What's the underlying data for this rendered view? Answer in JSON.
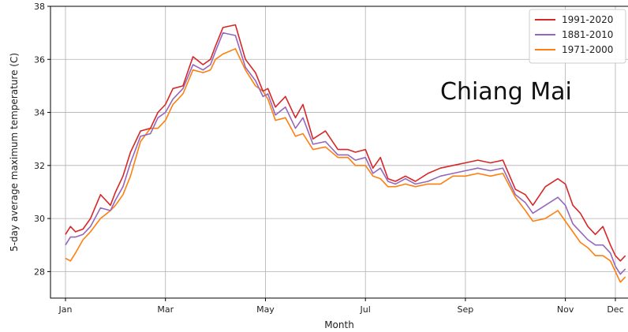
{
  "chart_data": {
    "type": "line",
    "title": "",
    "xlabel": "Month",
    "ylabel": "5-day average maximum temperature (C)",
    "annotation": "Chiang Mai",
    "xlim": [
      -0.3,
      11.3
    ],
    "ylim": [
      27,
      38
    ],
    "x_ticks": [
      0,
      2,
      4,
      6,
      8,
      10,
      11
    ],
    "x_tick_labels": [
      "Jan",
      "Mar",
      "May",
      "Jul",
      "Sep",
      "Nov",
      "Dec"
    ],
    "y_ticks": [
      28,
      30,
      32,
      34,
      36,
      38
    ],
    "y_tick_labels": [
      "28",
      "30",
      "32",
      "34",
      "36",
      "38"
    ],
    "grid": true,
    "legend_position": "top-right",
    "x_unit": "month index (0 = Jan)",
    "series": [
      {
        "name": "1991-2020",
        "color": "#d62728",
        "x": [
          0.0,
          0.1,
          0.2,
          0.35,
          0.5,
          0.7,
          0.9,
          1.0,
          1.15,
          1.3,
          1.5,
          1.7,
          1.85,
          2.0,
          2.15,
          2.35,
          2.55,
          2.75,
          2.9,
          3.0,
          3.15,
          3.4,
          3.6,
          3.8,
          3.95,
          4.05,
          4.2,
          4.4,
          4.6,
          4.75,
          4.95,
          5.2,
          5.45,
          5.65,
          5.8,
          6.0,
          6.15,
          6.3,
          6.45,
          6.6,
          6.8,
          7.0,
          7.25,
          7.5,
          7.75,
          8.0,
          8.25,
          8.5,
          8.75,
          9.0,
          9.2,
          9.35,
          9.6,
          9.85,
          10.0,
          10.15,
          10.3,
          10.45,
          10.6,
          10.75,
          10.9,
          11.0,
          11.1,
          11.2
        ],
        "y": [
          29.4,
          29.7,
          29.5,
          29.6,
          30.0,
          30.9,
          30.5,
          31.0,
          31.6,
          32.5,
          33.3,
          33.4,
          34.0,
          34.3,
          34.9,
          35.0,
          36.1,
          35.8,
          36.0,
          36.5,
          37.2,
          37.3,
          36.0,
          35.5,
          34.8,
          34.9,
          34.2,
          34.6,
          33.8,
          34.3,
          33.0,
          33.3,
          32.6,
          32.6,
          32.5,
          32.6,
          31.9,
          32.3,
          31.5,
          31.4,
          31.6,
          31.4,
          31.7,
          31.9,
          32.0,
          32.1,
          32.2,
          32.1,
          32.2,
          31.1,
          30.9,
          30.5,
          31.2,
          31.5,
          31.3,
          30.5,
          30.2,
          29.7,
          29.4,
          29.7,
          29.0,
          28.6,
          28.4,
          28.6
        ]
      },
      {
        "name": "1881-2010",
        "color": "#9467bd",
        "x": [
          0.0,
          0.1,
          0.2,
          0.35,
          0.5,
          0.7,
          0.9,
          1.0,
          1.15,
          1.3,
          1.5,
          1.7,
          1.85,
          2.0,
          2.15,
          2.35,
          2.55,
          2.75,
          2.9,
          3.0,
          3.15,
          3.4,
          3.6,
          3.8,
          3.95,
          4.05,
          4.2,
          4.4,
          4.6,
          4.75,
          4.95,
          5.2,
          5.45,
          5.65,
          5.8,
          6.0,
          6.15,
          6.3,
          6.45,
          6.6,
          6.8,
          7.0,
          7.25,
          7.5,
          7.75,
          8.0,
          8.25,
          8.5,
          8.75,
          9.0,
          9.2,
          9.35,
          9.6,
          9.85,
          10.0,
          10.15,
          10.3,
          10.45,
          10.6,
          10.75,
          10.9,
          11.0,
          11.1,
          11.2
        ],
        "y": [
          29.0,
          29.3,
          29.3,
          29.4,
          29.7,
          30.4,
          30.3,
          30.7,
          31.2,
          32.1,
          33.1,
          33.2,
          33.8,
          34.0,
          34.5,
          34.9,
          35.8,
          35.6,
          35.8,
          36.3,
          37.0,
          36.9,
          35.7,
          35.2,
          34.6,
          34.7,
          33.9,
          34.2,
          33.4,
          33.8,
          32.8,
          32.9,
          32.4,
          32.4,
          32.2,
          32.3,
          31.7,
          31.9,
          31.4,
          31.3,
          31.5,
          31.3,
          31.4,
          31.6,
          31.7,
          31.8,
          31.9,
          31.8,
          31.9,
          30.9,
          30.6,
          30.2,
          30.5,
          30.8,
          30.5,
          29.8,
          29.5,
          29.2,
          29.0,
          29.0,
          28.7,
          28.2,
          27.9,
          28.1
        ]
      },
      {
        "name": "1971-2000",
        "color": "#ff7f0e",
        "x": [
          0.0,
          0.1,
          0.2,
          0.35,
          0.5,
          0.7,
          0.9,
          1.0,
          1.15,
          1.3,
          1.5,
          1.7,
          1.85,
          2.0,
          2.15,
          2.35,
          2.55,
          2.75,
          2.9,
          3.0,
          3.15,
          3.4,
          3.6,
          3.8,
          3.95,
          4.05,
          4.2,
          4.4,
          4.6,
          4.75,
          4.95,
          5.2,
          5.45,
          5.65,
          5.8,
          6.0,
          6.15,
          6.3,
          6.45,
          6.6,
          6.8,
          7.0,
          7.25,
          7.5,
          7.75,
          8.0,
          8.25,
          8.5,
          8.75,
          9.0,
          9.2,
          9.35,
          9.6,
          9.85,
          10.0,
          10.15,
          10.3,
          10.45,
          10.6,
          10.75,
          10.9,
          11.0,
          11.1,
          11.2
        ],
        "y": [
          28.5,
          28.4,
          28.7,
          29.2,
          29.5,
          30.0,
          30.3,
          30.5,
          30.9,
          31.6,
          32.9,
          33.4,
          33.4,
          33.7,
          34.3,
          34.7,
          35.6,
          35.5,
          35.6,
          36.0,
          36.2,
          36.4,
          35.6,
          35.0,
          34.8,
          34.5,
          33.7,
          33.8,
          33.1,
          33.2,
          32.6,
          32.7,
          32.3,
          32.3,
          32.0,
          32.0,
          31.6,
          31.5,
          31.2,
          31.2,
          31.3,
          31.2,
          31.3,
          31.3,
          31.6,
          31.6,
          31.7,
          31.6,
          31.7,
          30.8,
          30.3,
          29.9,
          30.0,
          30.3,
          29.9,
          29.5,
          29.1,
          28.9,
          28.6,
          28.6,
          28.4,
          28.0,
          27.6,
          27.8
        ]
      }
    ]
  }
}
